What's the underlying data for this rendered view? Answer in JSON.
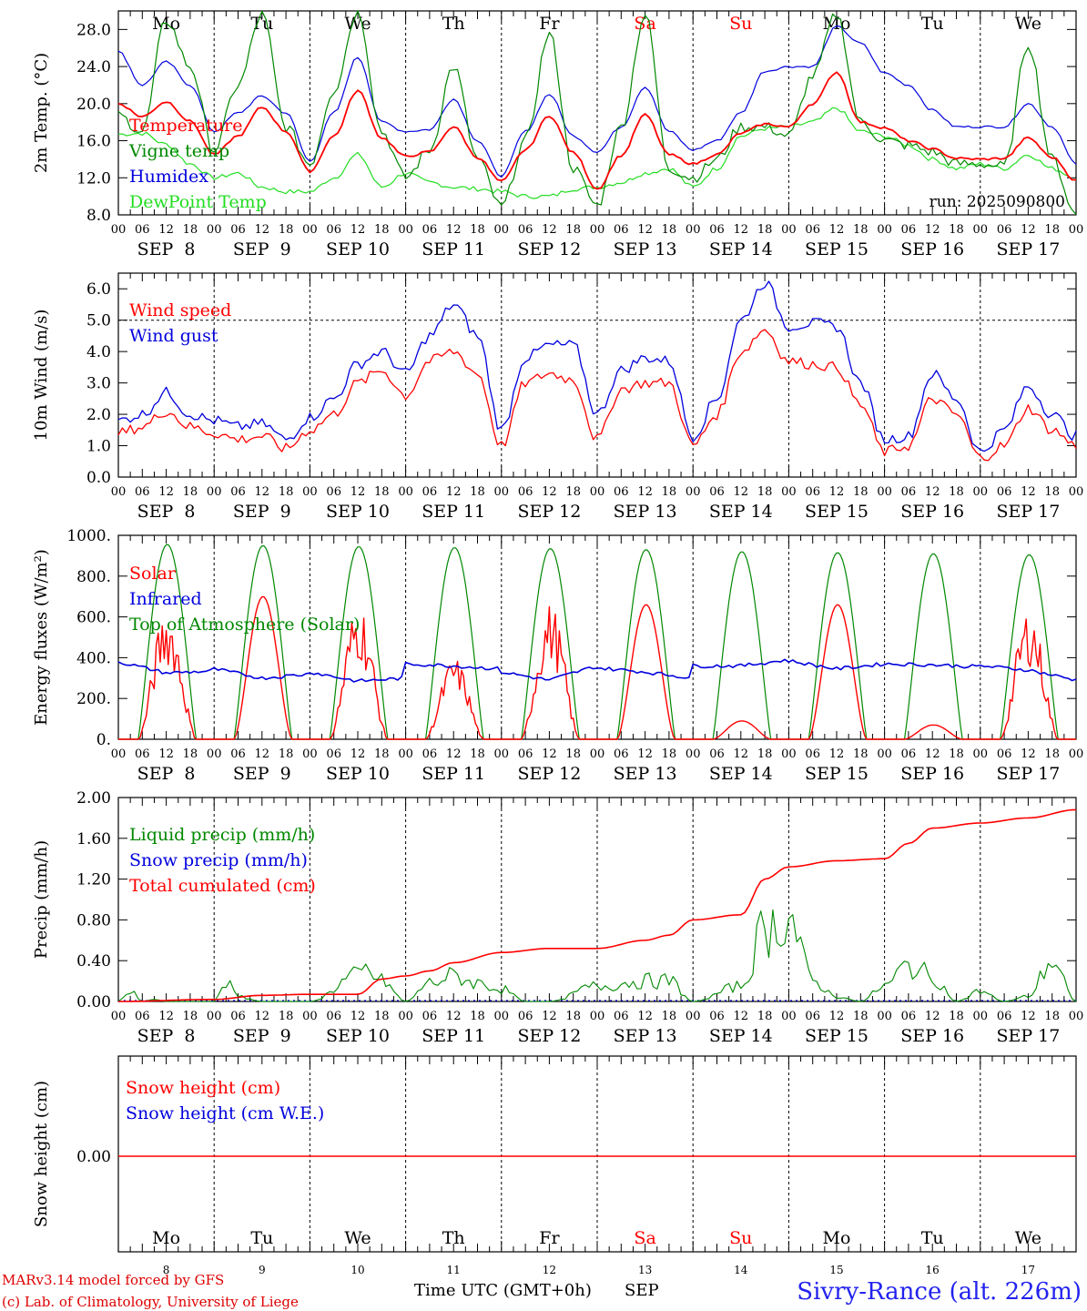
{
  "colors": {
    "red": "#ff0000",
    "blue": "#0000dd",
    "green": "#008800",
    "lightgreen": "#22dd22",
    "black": "#000000"
  },
  "weekdays": [
    "Mo",
    "Tu",
    "We",
    "Th",
    "Fr",
    "Sa",
    "Su",
    "Mo",
    "Tu",
    "We"
  ],
  "weekday_colors": [
    "black",
    "black",
    "black",
    "black",
    "black",
    "red",
    "red",
    "black",
    "black",
    "black"
  ],
  "date_labels": [
    "SEP  8",
    "SEP  9",
    "SEP 10",
    "SEP 11",
    "SEP 12",
    "SEP 13",
    "SEP 14",
    "SEP 15",
    "SEP 16",
    "SEP 17"
  ],
  "hour_ticks": [
    "00",
    "06",
    "12",
    "18"
  ],
  "end_hour_tick": "00",
  "bottom_day_numbers": [
    "8",
    "9",
    "10",
    "11",
    "12",
    "13",
    "14",
    "15",
    "16",
    "17"
  ],
  "footer": {
    "model": "MARv3.14 model forced by GFS",
    "copyright": "(c) Lab. of Climatology, University of Liege",
    "time_label": "Time UTC (GMT+0h)",
    "month": "SEP",
    "station": "Sivry-Rance (alt. 226m)"
  },
  "chart_data": [
    {
      "id": "temperature",
      "type": "line",
      "ylabel": "2m Temp. (°C)",
      "ylim": [
        8,
        30
      ],
      "yticks": [
        "8.0",
        "12.0",
        "16.0",
        "20.0",
        "24.0",
        "28.0"
      ],
      "annotation": "run: 2025090800",
      "x_hours": [
        0,
        6,
        12,
        18,
        24,
        30,
        36,
        42,
        48,
        54,
        60,
        66,
        72,
        78,
        84,
        90,
        96,
        102,
        108,
        114,
        120,
        126,
        132,
        138,
        144,
        150,
        156,
        162,
        168,
        174,
        180,
        186,
        192,
        198,
        204,
        210,
        216,
        222,
        228,
        234,
        240
      ],
      "series": [
        {
          "name": "Temperature",
          "color": "red",
          "values": [
            20.0,
            18.6,
            20.2,
            18.1,
            14.5,
            16.5,
            19.6,
            17.0,
            12.7,
            16.5,
            21.4,
            16.3,
            14.3,
            14.8,
            17.5,
            14.2,
            11.6,
            15.0,
            18.7,
            14.7,
            10.8,
            14.4,
            18.8,
            14.5,
            13.5,
            14.5,
            16.8,
            17.8,
            17.5,
            20.0,
            23.4,
            18.0,
            17.4,
            16.0,
            15.1,
            14.1,
            14.0,
            14.1,
            16.3,
            14.2,
            11.7
          ]
        },
        {
          "name": "Vigne temp",
          "color": "green",
          "values": [
            18.7,
            17.0,
            29.0,
            24.0,
            15.0,
            22.0,
            29.6,
            17.5,
            13.5,
            21.5,
            30.0,
            17.0,
            12.0,
            15.0,
            24.0,
            14.0,
            8.8,
            16.0,
            27.5,
            13.0,
            9.0,
            17.5,
            29.6,
            13.0,
            12.0,
            14.0,
            17.5,
            17.5,
            16.5,
            23.0,
            29.6,
            18.0,
            16.0,
            15.5,
            14.8,
            13.5,
            13.5,
            13.2,
            26.5,
            14.0,
            8.0
          ]
        },
        {
          "name": "Humidex",
          "color": "blue",
          "values": [
            25.6,
            22.0,
            24.5,
            22.0,
            17.0,
            19.0,
            20.8,
            19.0,
            13.8,
            19.0,
            25.0,
            18.0,
            17.0,
            17.2,
            20.5,
            16.0,
            12.2,
            17.0,
            21.0,
            16.5,
            14.8,
            17.5,
            21.8,
            17.0,
            15.0,
            16.0,
            19.0,
            23.5,
            24.0,
            24.0,
            28.3,
            26.5,
            23.3,
            22.0,
            19.3,
            17.5,
            17.5,
            17.5,
            20.0,
            17.5,
            13.5
          ]
        },
        {
          "name": "DewPoint Temp",
          "color": "lightgreen",
          "values": [
            16.7,
            16.8,
            15.6,
            13.5,
            12.0,
            12.5,
            11.0,
            10.5,
            10.5,
            12.0,
            14.5,
            11.0,
            12.5,
            11.5,
            11.0,
            10.8,
            10.5,
            10.0,
            10.0,
            10.8,
            11.0,
            11.5,
            12.5,
            13.0,
            11.0,
            13.0,
            16.5,
            17.3,
            17.5,
            18.0,
            19.5,
            17.0,
            16.5,
            15.5,
            14.0,
            13.0,
            13.5,
            13.0,
            14.5,
            13.0,
            12.0
          ]
        }
      ]
    },
    {
      "id": "wind",
      "type": "line",
      "ylabel": "10m Wind (m/s)",
      "ylim": [
        0,
        6.5
      ],
      "yticks": [
        "0.0",
        "1.0",
        "2.0",
        "3.0",
        "4.0",
        "5.0",
        "6.0"
      ],
      "reference_line": 5.0,
      "x_hours": [
        0,
        6,
        12,
        18,
        24,
        30,
        36,
        42,
        48,
        54,
        60,
        66,
        72,
        78,
        84,
        90,
        96,
        102,
        108,
        114,
        120,
        126,
        132,
        138,
        144,
        150,
        156,
        162,
        168,
        174,
        180,
        186,
        192,
        198,
        204,
        210,
        216,
        222,
        228,
        234,
        240
      ],
      "series": [
        {
          "name": "Wind speed",
          "color": "red",
          "values": [
            1.4,
            1.6,
            2.1,
            1.6,
            1.4,
            1.2,
            1.3,
            0.9,
            1.5,
            2.0,
            3.0,
            3.4,
            2.6,
            3.7,
            4.0,
            3.3,
            1.0,
            3.0,
            3.3,
            3.1,
            1.2,
            2.8,
            3.0,
            3.0,
            1.0,
            2.0,
            4.0,
            4.7,
            3.7,
            3.6,
            3.5,
            2.3,
            0.8,
            1.0,
            2.5,
            2.0,
            0.6,
            1.0,
            2.2,
            1.5,
            1.0
          ]
        },
        {
          "name": "Wind gust",
          "color": "blue",
          "values": [
            1.8,
            2.0,
            2.7,
            2.0,
            1.8,
            1.6,
            1.7,
            1.2,
            1.9,
            2.5,
            3.6,
            4.0,
            3.3,
            4.5,
            5.5,
            4.5,
            1.5,
            3.8,
            4.2,
            4.2,
            2.0,
            3.4,
            3.8,
            3.7,
            1.3,
            2.5,
            5.0,
            6.2,
            4.8,
            4.9,
            4.8,
            3.0,
            1.2,
            1.3,
            3.3,
            2.5,
            0.8,
            1.5,
            2.9,
            2.0,
            1.3
          ]
        }
      ]
    },
    {
      "id": "energy",
      "type": "line",
      "ylabel": "Energy fluxes (W/m²)",
      "ylim": [
        0,
        1000
      ],
      "yticks": [
        "0.",
        "200.",
        "400.",
        "600.",
        "800.",
        "1000."
      ],
      "peaks": {
        "Top of Atmosphere (Solar)": [
          955,
          950,
          945,
          940,
          935,
          930,
          920,
          915,
          910,
          905
        ],
        "Solar": [
          650,
          700,
          680,
          400,
          670,
          660,
          90,
          660,
          70,
          650
        ]
      },
      "infrared_daily": [
        [
          380,
          325,
          335
        ],
        [
          345,
          300,
          320
        ],
        [
          330,
          285,
          300
        ],
        [
          370,
          360,
          345
        ],
        [
          330,
          290,
          360
        ],
        [
          350,
          330,
          300
        ],
        [
          360,
          360,
          390
        ],
        [
          385,
          345,
          370
        ],
        [
          370,
          365,
          355
        ],
        [
          360,
          340,
          290
        ]
      ],
      "series": [
        {
          "name": "Solar",
          "color": "red"
        },
        {
          "name": "Infrared",
          "color": "blue"
        },
        {
          "name": "Top of Atmosphere (Solar)",
          "color": "green"
        }
      ]
    },
    {
      "id": "precip",
      "type": "line",
      "ylabel": "Precip (mm/h)",
      "ylim": [
        0,
        2.0
      ],
      "yticks": [
        "0.00",
        "0.40",
        "0.80",
        "1.20",
        "1.60",
        "2.00"
      ],
      "liquid_x_hours": [
        0,
        3,
        6,
        9,
        12,
        24,
        27,
        30,
        36,
        48,
        60,
        62,
        66,
        72,
        78,
        84,
        90,
        96,
        102,
        108,
        120,
        132,
        138,
        144,
        156,
        162,
        168,
        174,
        180,
        186,
        192,
        198,
        204,
        210,
        216,
        222,
        228,
        234,
        240
      ],
      "liquid_values": [
        0.0,
        0.12,
        0.0,
        0.02,
        0.0,
        0.0,
        0.18,
        0.05,
        0.0,
        0.0,
        0.25,
        0.3,
        0.2,
        0.0,
        0.18,
        0.25,
        0.18,
        0.12,
        0.0,
        0.0,
        0.15,
        0.2,
        0.2,
        0.0,
        0.15,
        0.7,
        0.82,
        0.2,
        0.05,
        0.0,
        0.15,
        0.35,
        0.25,
        0.0,
        0.1,
        0.0,
        0.05,
        0.4,
        0.0
      ],
      "cumulated_x_hours": [
        0,
        24,
        36,
        48,
        60,
        66,
        72,
        78,
        84,
        96,
        108,
        120,
        132,
        138,
        144,
        156,
        162,
        168,
        180,
        192,
        198,
        204,
        216,
        228,
        240
      ],
      "cumulated_values": [
        0.0,
        0.02,
        0.06,
        0.07,
        0.07,
        0.22,
        0.25,
        0.3,
        0.38,
        0.48,
        0.52,
        0.52,
        0.6,
        0.65,
        0.8,
        0.85,
        1.2,
        1.32,
        1.38,
        1.4,
        1.55,
        1.7,
        1.75,
        1.8,
        1.88
      ],
      "series": [
        {
          "name": "Liquid precip (mm/h)",
          "color": "green"
        },
        {
          "name": "Snow precip (mm/h)",
          "color": "blue"
        },
        {
          "name": "Total cumulated (cm)",
          "color": "red"
        }
      ]
    },
    {
      "id": "snow",
      "type": "line",
      "ylabel": "Snow height (cm)",
      "yticks": [
        "0.00"
      ],
      "values": [
        0.0,
        0.0
      ],
      "series": [
        {
          "name": "Snow height (cm)",
          "color": "red"
        },
        {
          "name": "Snow height (cm W.E.)",
          "color": "blue"
        }
      ]
    }
  ]
}
